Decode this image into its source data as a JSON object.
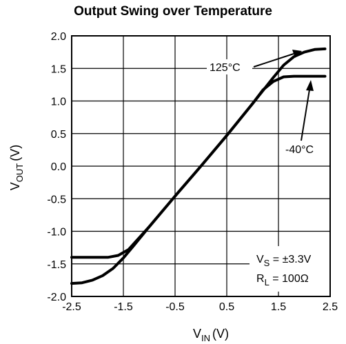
{
  "chart_data": {
    "type": "line",
    "title": "Output Swing over Temperature",
    "xlabel": {
      "main": "V",
      "sub": "IN",
      "unit": "(V)"
    },
    "ylabel": {
      "main": "V",
      "sub": "OUT",
      "unit": "(V)"
    },
    "xlim": [
      -2.5,
      2.5
    ],
    "ylim": [
      -2.0,
      2.0
    ],
    "x_ticks": [
      "-2.5",
      "-1.5",
      "-0.5",
      "0.5",
      "1.5",
      "2.5"
    ],
    "y_ticks": [
      "2.0",
      "1.5",
      "1.0",
      "0.5",
      "0.0",
      "-0.5",
      "-1.0",
      "-1.5",
      "-2.0"
    ],
    "grid": true,
    "series": [
      {
        "name": "125°C",
        "points": [
          [
            -2.5,
            -1.8
          ],
          [
            -2.3,
            -1.79
          ],
          [
            -2.1,
            -1.75
          ],
          [
            -1.9,
            -1.68
          ],
          [
            -1.7,
            -1.57
          ],
          [
            -1.5,
            -1.41
          ],
          [
            -1.3,
            -1.22
          ],
          [
            -1.0,
            -0.93
          ],
          [
            -0.5,
            -0.46
          ],
          [
            0.0,
            0.0
          ],
          [
            0.5,
            0.47
          ],
          [
            1.0,
            0.96
          ],
          [
            1.4,
            1.36
          ],
          [
            1.6,
            1.55
          ],
          [
            1.8,
            1.68
          ],
          [
            2.0,
            1.75
          ],
          [
            2.2,
            1.79
          ],
          [
            2.4,
            1.8
          ]
        ]
      },
      {
        "name": "-40°C",
        "points": [
          [
            -2.5,
            -1.4
          ],
          [
            -1.8,
            -1.4
          ],
          [
            -1.6,
            -1.37
          ],
          [
            -1.4,
            -1.28
          ],
          [
            -1.0,
            -0.93
          ],
          [
            -0.5,
            -0.46
          ],
          [
            0.0,
            0.0
          ],
          [
            0.5,
            0.47
          ],
          [
            1.0,
            0.96
          ],
          [
            1.2,
            1.17
          ],
          [
            1.4,
            1.3
          ],
          [
            1.6,
            1.37
          ],
          [
            1.8,
            1.38
          ],
          [
            2.4,
            1.38
          ]
        ]
      }
    ],
    "annotations": {
      "t125": "125°C",
      "tm40": "-40°C",
      "vs_main": "V",
      "vs_sub": "S",
      "vs_val": " = ±3.3V",
      "rl_main": "R",
      "rl_sub": "L",
      "rl_val": " = 100Ω"
    }
  }
}
